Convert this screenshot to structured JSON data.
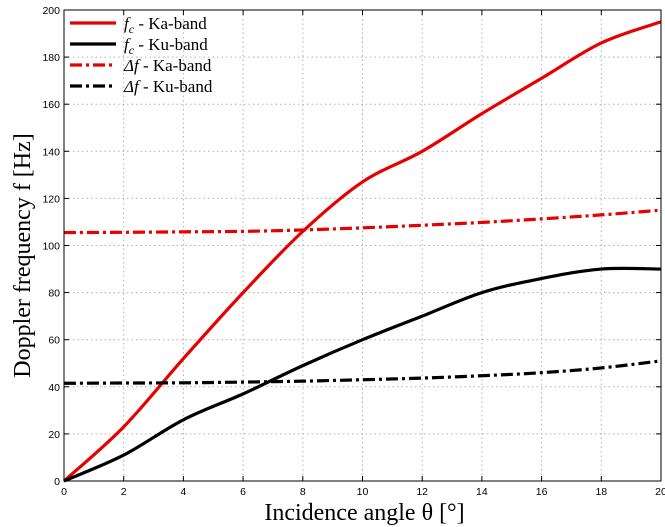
{
  "chart_data": {
    "type": "line",
    "xlabel": "Incidence angle θ [°]",
    "ylabel": "Doppler frequency f [Hz]",
    "xlim": [
      0,
      20
    ],
    "ylim": [
      0,
      200
    ],
    "xticks": [
      0,
      2,
      4,
      6,
      8,
      10,
      12,
      14,
      16,
      18,
      20
    ],
    "yticks": [
      0,
      20,
      40,
      60,
      80,
      100,
      120,
      140,
      160,
      180,
      200
    ],
    "grid": true,
    "legend_position": "top-left",
    "x": [
      0,
      2,
      4,
      6,
      8,
      10,
      12,
      14,
      16,
      18,
      20
    ],
    "series": [
      {
        "name": "f_c - Ka-band",
        "legend_symbol": "f",
        "legend_subscript": "c",
        "legend_suffix": " - Ka-band",
        "color": "#e60000",
        "style": "solid",
        "values": [
          0,
          23,
          52,
          80,
          106,
          127,
          140,
          156,
          171,
          186,
          195
        ]
      },
      {
        "name": "f_c - Ku-band",
        "legend_symbol": "f",
        "legend_subscript": "c",
        "legend_suffix": " - Ku-band",
        "color": "#000000",
        "style": "solid",
        "values": [
          0,
          11,
          26,
          37,
          49,
          60,
          70,
          80,
          86,
          90,
          90
        ]
      },
      {
        "name": "Δf - Ka-band",
        "legend_symbol": "Δf",
        "legend_subscript": "",
        "legend_suffix": " - Ka-band",
        "color": "#e60000",
        "style": "dashdot",
        "values": [
          105.5,
          105.6,
          105.8,
          106,
          106.6,
          107.5,
          108.6,
          109.8,
          111.3,
          113,
          115
        ]
      },
      {
        "name": "Δf - Ku-band",
        "legend_symbol": "Δf",
        "legend_subscript": "",
        "legend_suffix": " - Ku-band",
        "color": "#000000",
        "style": "dashdot",
        "values": [
          41.5,
          41.6,
          41.7,
          42,
          42.4,
          43,
          43.7,
          44.7,
          46,
          48,
          51
        ]
      }
    ]
  }
}
